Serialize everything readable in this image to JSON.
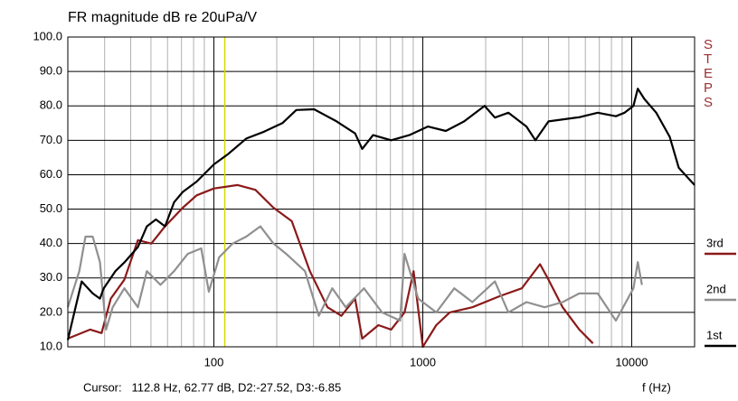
{
  "chart_data": {
    "type": "line",
    "title": "FR magnitude dB re 20uPa/V",
    "x_label": "f (Hz)",
    "side_label": "STEPS",
    "annotation": "Cursor:   112.8 Hz, 62.77 dB, D2:-27.52, D3:-6.85",
    "cursor": {
      "x": 112.8,
      "color": "#d8d800"
    },
    "xlog": true,
    "xlim": [
      20,
      20000
    ],
    "xticks": [
      100,
      1000,
      10000
    ],
    "xgrid": [
      20,
      30,
      40,
      50,
      60,
      70,
      80,
      90,
      200,
      300,
      400,
      500,
      600,
      700,
      800,
      900,
      2000,
      3000,
      4000,
      5000,
      6000,
      7000,
      8000,
      9000
    ],
    "ylim": [
      10,
      100
    ],
    "yticks": [
      {
        "value": 10,
        "label": "10.0"
      },
      {
        "value": 20,
        "label": "20.0"
      },
      {
        "value": 30,
        "label": "30.0"
      },
      {
        "value": 40,
        "label": "40.0"
      },
      {
        "value": 50,
        "label": "50.0"
      },
      {
        "value": 60,
        "label": "60.0"
      },
      {
        "value": 70,
        "label": "70.0"
      },
      {
        "value": 80,
        "label": "80.0"
      },
      {
        "value": 90,
        "label": "90.0"
      },
      {
        "value": 100,
        "label": "100.0"
      }
    ],
    "grid": true,
    "series": [
      {
        "name": "1st",
        "color": "#000000",
        "x": [
          20,
          23.3,
          26.3,
          28.5,
          29.7,
          33.8,
          37.3,
          43.3,
          47.8,
          52.8,
          58.4,
          64.5,
          71,
          82.7,
          100,
          117,
          143,
          174,
          213,
          248,
          302,
          387,
          474,
          513,
          578,
          706,
          862,
          1058,
          1288,
          1578,
          1977,
          2215,
          2568,
          3135,
          3460,
          4000,
          5612,
          6877,
          8400,
          9250,
          10200,
          10700,
          11500,
          13100,
          15200,
          16800,
          20000
        ],
        "values": [
          12,
          29,
          25.5,
          24,
          27,
          32,
          34.5,
          39,
          45,
          47,
          45,
          52,
          55,
          58,
          63,
          66,
          70.5,
          72.5,
          75,
          78.8,
          79,
          75.5,
          72,
          67.5,
          71.5,
          70,
          71.5,
          74,
          72.7,
          75.5,
          80,
          76.6,
          78,
          74,
          70,
          75.5,
          76.7,
          78,
          77,
          78,
          80,
          85,
          82,
          78,
          71,
          62,
          57
        ]
      },
      {
        "name": "2nd",
        "color": "#909090",
        "x": [
          20,
          22.7,
          24.3,
          26.3,
          28.5,
          30.5,
          32.8,
          37.3,
          43.3,
          47.8,
          55.5,
          64.5,
          75,
          87,
          94.6,
          106,
          123,
          143,
          167,
          193,
          224,
          273,
          318,
          369,
          428,
          523,
          638,
          779,
          818,
          951,
          1161,
          1415,
          1728,
          2215,
          2568,
          3135,
          3826,
          4670,
          5612,
          6877,
          8400,
          10200,
          10700,
          11200
        ],
        "values": [
          21.5,
          32,
          42,
          42,
          34.6,
          15,
          21.5,
          27,
          21.5,
          32,
          28,
          32,
          37,
          38.6,
          26,
          36,
          40,
          42,
          45,
          40,
          36.8,
          32,
          19,
          27,
          21.5,
          27,
          20,
          17.6,
          37,
          24,
          20,
          27,
          23,
          29,
          20,
          23,
          21.5,
          23,
          25.5,
          25.5,
          17.6,
          27,
          34.6,
          28
        ]
      },
      {
        "name": "3rd",
        "color": "#8b1a1a",
        "x": [
          20,
          25.6,
          29,
          32.1,
          37.3,
          43.3,
          50.2,
          58.4,
          71,
          82.7,
          100,
          130,
          158,
          193,
          236,
          288,
          350,
          408,
          474,
          513,
          613,
          706,
          818,
          904,
          1000,
          1161,
          1346,
          1728,
          2330,
          2980,
          3640,
          4000,
          4670,
          5612,
          6520
        ],
        "values": [
          12.4,
          15,
          14,
          24,
          29.5,
          41,
          40,
          45,
          50.4,
          54,
          56,
          57,
          55.6,
          50.4,
          46.5,
          32,
          21.5,
          19,
          24,
          12.4,
          16.3,
          15,
          20,
          32,
          10,
          16.3,
          20,
          21.5,
          24.7,
          27,
          34,
          29.5,
          21.5,
          15,
          11
        ]
      }
    ]
  }
}
